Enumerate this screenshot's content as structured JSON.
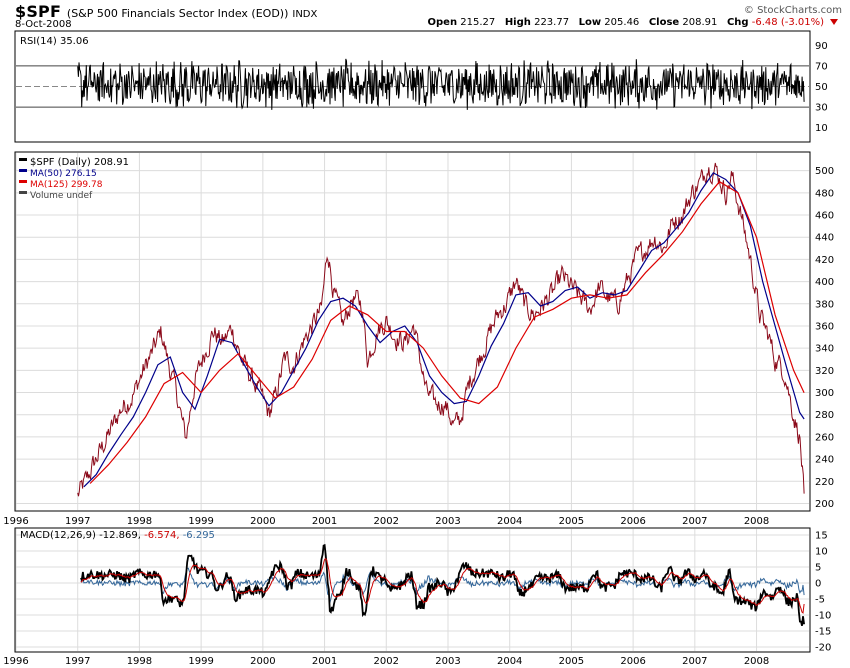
{
  "header": {
    "symbol": "$SPF",
    "name": "(S&P 500 Financials Sector Index (EOD))",
    "exchange": "INDX",
    "date": "8-Oct-2008",
    "brand": "© StockCharts.com",
    "open_label": "Open",
    "open": "215.27",
    "high_label": "High",
    "high": "223.77",
    "low_label": "Low",
    "low": "205.46",
    "close_label": "Close",
    "close": "208.91",
    "chg_label": "Chg",
    "chg": "-6.48 (-3.01%)"
  },
  "colors": {
    "price": "#8b0a1a",
    "ma50": "#00008b",
    "ma125": "#dd0000",
    "rsi": "#000000",
    "macd": "#000000",
    "signal": "#cc0000",
    "histogram": "#336699",
    "grid": "#dcdcdc"
  },
  "chart_data": [
    {
      "type": "line",
      "panel": "RSI",
      "legend": "RSI(14) 35.06",
      "ylim": [
        0,
        100
      ],
      "yticks": [
        10,
        30,
        50,
        70,
        90
      ],
      "reference_lines": [
        30,
        50,
        70
      ],
      "last_value": 35.06
    },
    {
      "type": "line",
      "panel": "Price",
      "ylim": [
        195,
        515
      ],
      "yticks": [
        200,
        220,
        240,
        260,
        280,
        300,
        320,
        340,
        360,
        380,
        400,
        420,
        440,
        460,
        480,
        500
      ],
      "xticks": [
        "1996",
        "1997",
        "1998",
        "1999",
        "2000",
        "2001",
        "2002",
        "2003",
        "2004",
        "2005",
        "2006",
        "2007",
        "2008"
      ],
      "legend": [
        {
          "name": "$SPF (Daily) 208.91",
          "color": "#000000"
        },
        {
          "name": "MA(50) 276.15",
          "color": "#00008b"
        },
        {
          "name": "MA(125) 299.78",
          "color": "#dd0000"
        },
        {
          "name": "Volume undef",
          "color": "#444444"
        }
      ],
      "series": [
        {
          "name": "$SPF (Daily)",
          "x": [
            1997.0,
            1997.15,
            1997.3,
            1997.5,
            1997.7,
            1997.9,
            1998.05,
            1998.2,
            1998.35,
            1998.5,
            1998.6,
            1998.75,
            1998.9,
            1999.05,
            1999.2,
            1999.35,
            1999.5,
            1999.65,
            1999.8,
            1999.95,
            2000.1,
            2000.2,
            2000.35,
            2000.5,
            2000.65,
            2000.8,
            2000.95,
            2001.05,
            2001.15,
            2001.3,
            2001.45,
            2001.6,
            2001.7,
            2001.85,
            2002.0,
            2002.15,
            2002.3,
            2002.45,
            2002.55,
            2002.65,
            2002.8,
            2002.95,
            2003.1,
            2003.2,
            2003.35,
            2003.5,
            2003.65,
            2003.8,
            2003.95,
            2004.1,
            2004.25,
            2004.4,
            2004.55,
            2004.7,
            2004.85,
            2005.0,
            2005.15,
            2005.3,
            2005.45,
            2005.6,
            2005.75,
            2005.9,
            2006.05,
            2006.2,
            2006.35,
            2006.5,
            2006.65,
            2006.8,
            2006.95,
            2007.1,
            2007.2,
            2007.35,
            2007.5,
            2007.6,
            2007.75,
            2007.9,
            2008.05,
            2008.2,
            2008.3,
            2008.45,
            2008.6,
            2008.7,
            2008.77
          ],
          "values": [
            207,
            222,
            240,
            262,
            285,
            298,
            318,
            335,
            355,
            320,
            300,
            258,
            310,
            335,
            355,
            345,
            358,
            330,
            315,
            300,
            280,
            295,
            330,
            325,
            345,
            360,
            375,
            430,
            390,
            360,
            385,
            380,
            330,
            355,
            365,
            350,
            345,
            360,
            330,
            300,
            290,
            290,
            270,
            275,
            310,
            330,
            350,
            370,
            380,
            400,
            378,
            370,
            380,
            390,
            405,
            395,
            385,
            375,
            395,
            385,
            380,
            400,
            420,
            430,
            440,
            430,
            455,
            460,
            480,
            490,
            505,
            500,
            480,
            495,
            460,
            420,
            370,
            350,
            330,
            320,
            280,
            260,
            208.91
          ]
        },
        {
          "name": "MA(50)",
          "x": [
            1997.1,
            1997.3,
            1997.5,
            1997.7,
            1997.9,
            1998.1,
            1998.3,
            1998.5,
            1998.7,
            1998.9,
            1999.1,
            1999.3,
            1999.5,
            1999.7,
            1999.9,
            2000.1,
            2000.3,
            2000.5,
            2000.7,
            2000.9,
            2001.1,
            2001.3,
            2001.5,
            2001.7,
            2001.9,
            2002.1,
            2002.3,
            2002.5,
            2002.7,
            2002.9,
            2003.1,
            2003.3,
            2003.5,
            2003.7,
            2003.9,
            2004.1,
            2004.3,
            2004.5,
            2004.7,
            2004.9,
            2005.1,
            2005.3,
            2005.5,
            2005.7,
            2005.9,
            2006.1,
            2006.3,
            2006.5,
            2006.7,
            2006.9,
            2007.1,
            2007.3,
            2007.5,
            2007.7,
            2007.9,
            2008.1,
            2008.3,
            2008.5,
            2008.7,
            2008.77
          ],
          "values": [
            215,
            226,
            245,
            262,
            278,
            300,
            325,
            332,
            300,
            285,
            315,
            348,
            345,
            325,
            305,
            288,
            300,
            320,
            340,
            365,
            382,
            385,
            378,
            360,
            345,
            355,
            360,
            345,
            315,
            300,
            290,
            292,
            315,
            342,
            362,
            388,
            390,
            378,
            382,
            392,
            395,
            385,
            390,
            388,
            392,
            410,
            428,
            435,
            448,
            462,
            482,
            498,
            492,
            480,
            450,
            400,
            360,
            320,
            282,
            276.15
          ]
        },
        {
          "name": "MA(125)",
          "x": [
            1997.2,
            1997.5,
            1997.8,
            1998.1,
            1998.4,
            1998.7,
            1999.0,
            1999.3,
            1999.6,
            1999.9,
            2000.2,
            2000.5,
            2000.8,
            2001.1,
            2001.4,
            2001.7,
            2002.0,
            2002.3,
            2002.6,
            2002.9,
            2003.2,
            2003.5,
            2003.8,
            2004.1,
            2004.4,
            2004.7,
            2005.0,
            2005.3,
            2005.6,
            2005.9,
            2006.2,
            2006.5,
            2006.8,
            2007.1,
            2007.4,
            2007.7,
            2008.0,
            2008.3,
            2008.6,
            2008.77
          ],
          "values": [
            218,
            235,
            255,
            278,
            308,
            318,
            300,
            320,
            335,
            315,
            295,
            305,
            330,
            365,
            378,
            370,
            355,
            355,
            340,
            315,
            295,
            290,
            305,
            340,
            368,
            375,
            385,
            388,
            385,
            388,
            408,
            425,
            445,
            470,
            490,
            480,
            440,
            370,
            320,
            299.78
          ]
        }
      ]
    },
    {
      "type": "line",
      "panel": "MACD",
      "legend": "MACD(12,26,9) -12.869, -6.574, -6.295",
      "legend_parts": [
        "MACD(12,26,9) -12.869,",
        "-6.574,",
        "-6.295"
      ],
      "ylim": [
        -20,
        15
      ],
      "yticks": [
        15,
        10,
        5,
        0,
        -5,
        -10,
        -15,
        -20
      ],
      "xticks": [
        "1996",
        "1997",
        "1998",
        "1999",
        "2000",
        "2001",
        "2002",
        "2003",
        "2004",
        "2005",
        "2006",
        "2007",
        "2008"
      ],
      "last_values": {
        "macd": -12.869,
        "signal": -6.574,
        "histogram": -6.295
      }
    }
  ]
}
